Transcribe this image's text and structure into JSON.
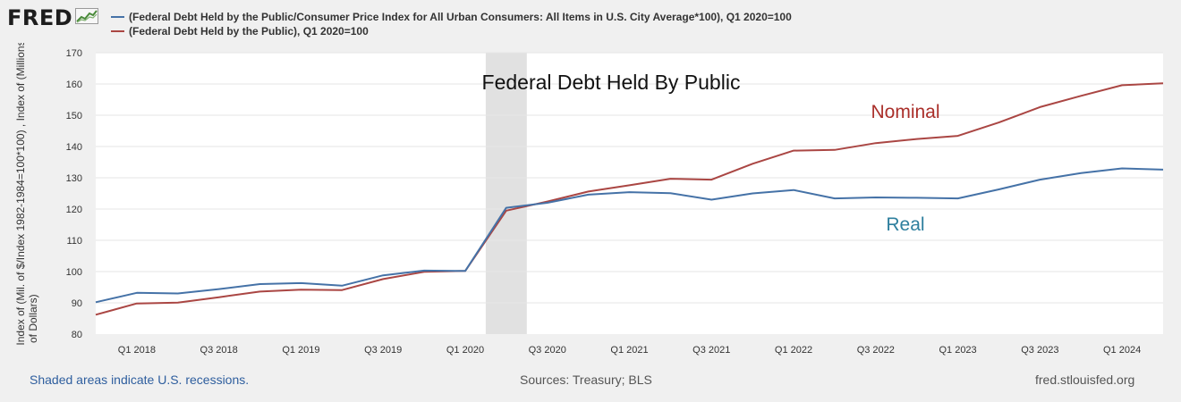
{
  "brand": {
    "logo_text": "FRED",
    "logo_icon": "line-chart-icon"
  },
  "legend": [
    {
      "label": "(Federal Debt Held by the Public/Consumer Price Index for All Urban Consumers: All Items in U.S. City Average*100), Q1 2020=100",
      "color": "#4572a7"
    },
    {
      "label": "(Federal Debt Held by the Public), Q1 2020=100",
      "color": "#aa4643"
    }
  ],
  "y_axis_title_lines": [
    "Index of (Mil. of $/Index 1982-1984=100*100) , Index of (Millions",
    "of Dollars)"
  ],
  "footer": {
    "recession_note": "Shaded areas indicate U.S. recessions.",
    "sources": "Sources: Treasury; BLS",
    "site": "fred.stlouisfed.org"
  },
  "chart_data": {
    "type": "line",
    "title": "Federal Debt Held By Public",
    "ylim": [
      80,
      170
    ],
    "yticks": [
      80,
      90,
      100,
      110,
      120,
      130,
      140,
      150,
      160,
      170
    ],
    "x_tick_labels": [
      "Q1 2018",
      "Q3 2018",
      "Q1 2019",
      "Q3 2019",
      "Q1 2020",
      "Q3 2020",
      "Q1 2021",
      "Q3 2021",
      "Q1 2022",
      "Q3 2022",
      "Q1 2023",
      "Q3 2023",
      "Q1 2024"
    ],
    "x": [
      "Q4 2017",
      "Q1 2018",
      "Q2 2018",
      "Q3 2018",
      "Q4 2018",
      "Q1 2019",
      "Q2 2019",
      "Q3 2019",
      "Q4 2019",
      "Q1 2020",
      "Q2 2020",
      "Q3 2020",
      "Q4 2020",
      "Q1 2021",
      "Q2 2021",
      "Q3 2021",
      "Q4 2021",
      "Q1 2022",
      "Q2 2022",
      "Q3 2022",
      "Q4 2022",
      "Q1 2023",
      "Q2 2023",
      "Q3 2023",
      "Q4 2023",
      "Q1 2024",
      "Q2 2024"
    ],
    "recession": [
      "Q1 2020",
      "Q2 2020"
    ],
    "grid": true,
    "series": [
      {
        "name": "Real",
        "color": "#4572a7",
        "label_color": "#2e7f9e",
        "values": [
          90.2,
          93.2,
          93.0,
          94.4,
          96.0,
          96.3,
          95.5,
          98.8,
          100.3,
          100.2,
          120.4,
          122.0,
          124.6,
          125.4,
          125.1,
          123.0,
          125.0,
          126.1,
          123.4,
          123.7,
          123.6,
          123.4,
          126.3,
          129.4,
          131.5,
          133.0,
          132.6
        ]
      },
      {
        "name": "Nominal",
        "color": "#aa4643",
        "label_color": "#aa2f2a",
        "values": [
          86.2,
          89.8,
          90.1,
          91.8,
          93.6,
          94.2,
          94.1,
          97.6,
          99.9,
          100.2,
          119.5,
          122.4,
          125.6,
          127.6,
          129.7,
          129.4,
          134.5,
          138.7,
          138.9,
          141.1,
          142.4,
          143.4,
          147.7,
          152.6,
          156.2,
          159.6,
          160.2
        ]
      }
    ]
  }
}
